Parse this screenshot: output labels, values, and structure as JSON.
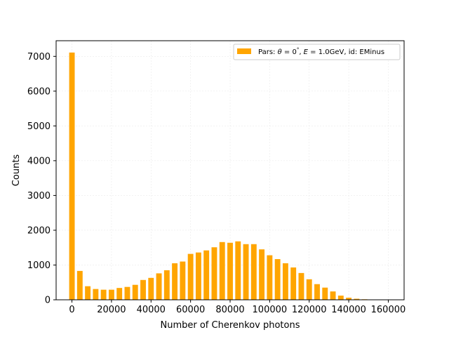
{
  "chart_data": {
    "type": "bar",
    "xlabel": "Number of Cherenkov photons",
    "ylabel": "Counts",
    "xlim": [
      -8000,
      168000
    ],
    "ylim": [
      0,
      7450
    ],
    "x_ticks": [
      0,
      20000,
      40000,
      60000,
      80000,
      100000,
      120000,
      140000,
      160000
    ],
    "y_ticks": [
      0,
      1000,
      2000,
      3000,
      4000,
      5000,
      6000,
      7000
    ],
    "grid": true,
    "bar_color": "#ffa500",
    "legend": {
      "placement": "top-right",
      "entries": [
        {
          "prefix": "Pars: ",
          "theta_sym": "θ",
          "theta_val": " = 0",
          "deg": "°",
          "e_sym": "E",
          "e_val": " = 1.0GeV",
          "suffix": ", id: EMinus"
        }
      ]
    },
    "series": [
      {
        "x": [
          0,
          4000,
          8000,
          12000,
          16000,
          20000,
          24000,
          28000,
          32000,
          36000,
          40000,
          44000,
          48000,
          52000,
          56000,
          60000,
          64000,
          68000,
          72000,
          76000,
          80000,
          84000,
          88000,
          92000,
          96000,
          100000,
          104000,
          108000,
          112000,
          116000,
          120000,
          124000,
          128000,
          132000,
          136000,
          140000,
          144000,
          148000,
          152000,
          156000,
          160000
        ],
        "values": [
          7110,
          830,
          390,
          310,
          290,
          290,
          340,
          370,
          430,
          570,
          630,
          760,
          850,
          1050,
          1100,
          1320,
          1360,
          1420,
          1510,
          1660,
          1640,
          1680,
          1600,
          1600,
          1450,
          1280,
          1170,
          1050,
          930,
          770,
          590,
          450,
          350,
          240,
          120,
          60,
          30,
          15,
          5,
          2,
          1
        ]
      }
    ]
  }
}
